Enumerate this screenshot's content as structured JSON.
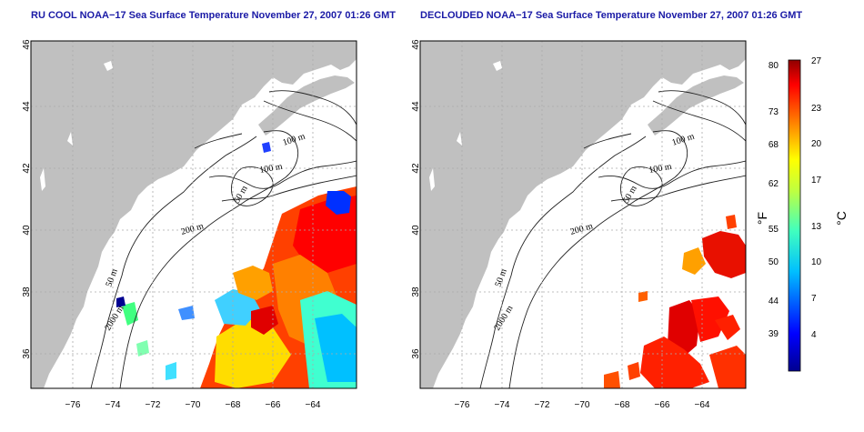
{
  "maps": [
    {
      "title": "RU COOL NOAA−17 Sea Surface Temperature November 27, 2007 01:26 GMT",
      "x_ticks": [
        "−76",
        "−74",
        "−72",
        "−70",
        "−68",
        "−66",
        "−64"
      ],
      "y_ticks": [
        "46",
        "44",
        "42",
        "40",
        "38",
        "36"
      ],
      "contour_labels": [
        "100 m",
        "100 m",
        "50 m",
        "200 m",
        "50 m",
        "2000 m"
      ]
    },
    {
      "title": "DECLOUDED NOAA−17 Sea Surface Temperature November 27, 2007 01:26 GMT",
      "x_ticks": [
        "−76",
        "−74",
        "−72",
        "−70",
        "−68",
        "−66",
        "−64"
      ],
      "y_ticks": [
        "46",
        "44",
        "42",
        "40",
        "38",
        "36"
      ],
      "contour_labels": [
        "100 m",
        "100 m",
        "50 m",
        "200 m",
        "50 m",
        "2000 m"
      ]
    }
  ],
  "colorbar": {
    "fahrenheit_ticks": [
      "80",
      "73",
      "68",
      "62",
      "55",
      "50",
      "44",
      "39"
    ],
    "celsius_ticks": [
      "27",
      "23",
      "20",
      "17",
      "13",
      "10",
      "7",
      "4"
    ],
    "unit_left": "°F",
    "unit_right": "°C",
    "colors": [
      "#00008f",
      "#0000ff",
      "#0080ff",
      "#00ffff",
      "#80ff80",
      "#ffff00",
      "#ff8000",
      "#ff0000",
      "#800000"
    ]
  },
  "colors": {
    "land": "#c0c0c0",
    "ocean": "#ffffff",
    "title": "#1a1aa6",
    "contour": "#222222",
    "grid": "#aaaaaa"
  }
}
